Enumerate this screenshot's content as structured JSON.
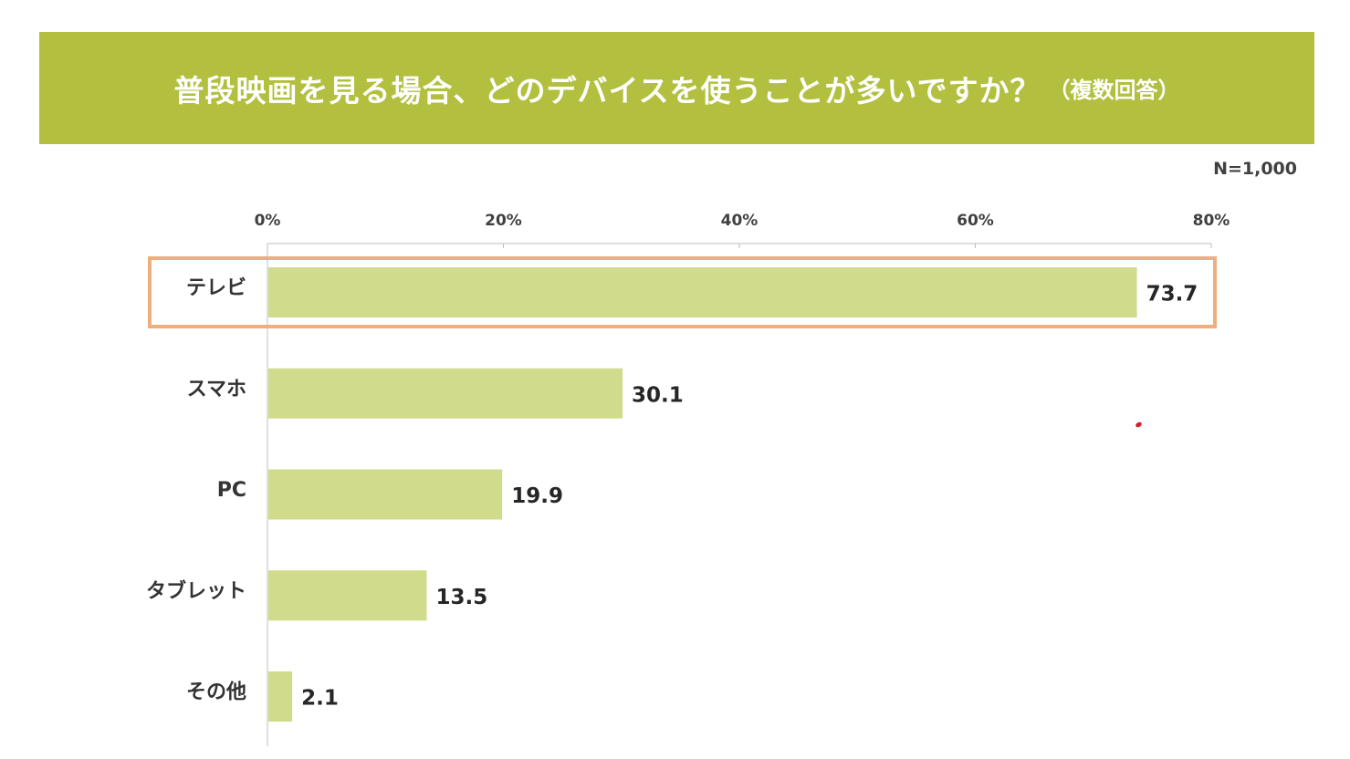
{
  "title": {
    "main": "普段映画を見る場合、どのデバイスを使うことが多いですか？",
    "sub": "（複数回答）"
  },
  "sample_size": "N=1,000",
  "colors": {
    "banner": "#b2bf3f",
    "bar": "#d1db8c",
    "highlight_border": "#eeae7e",
    "axis": "#bfbfbf"
  },
  "chart_data": {
    "type": "bar",
    "orientation": "horizontal",
    "categories": [
      "テレビ",
      "スマホ",
      "PC",
      "タブレット",
      "その他"
    ],
    "values": [
      73.7,
      30.1,
      19.9,
      13.5,
      2.1
    ],
    "value_labels": [
      "73.7",
      "30.1",
      "19.9",
      "13.5",
      "2.1"
    ],
    "x_ticks": [
      "0%",
      "20%",
      "40%",
      "60%",
      "80%"
    ],
    "xlim": [
      0,
      80
    ],
    "axis_position": "top",
    "highlighted_category": "テレビ",
    "grid": false,
    "legend": "none"
  }
}
